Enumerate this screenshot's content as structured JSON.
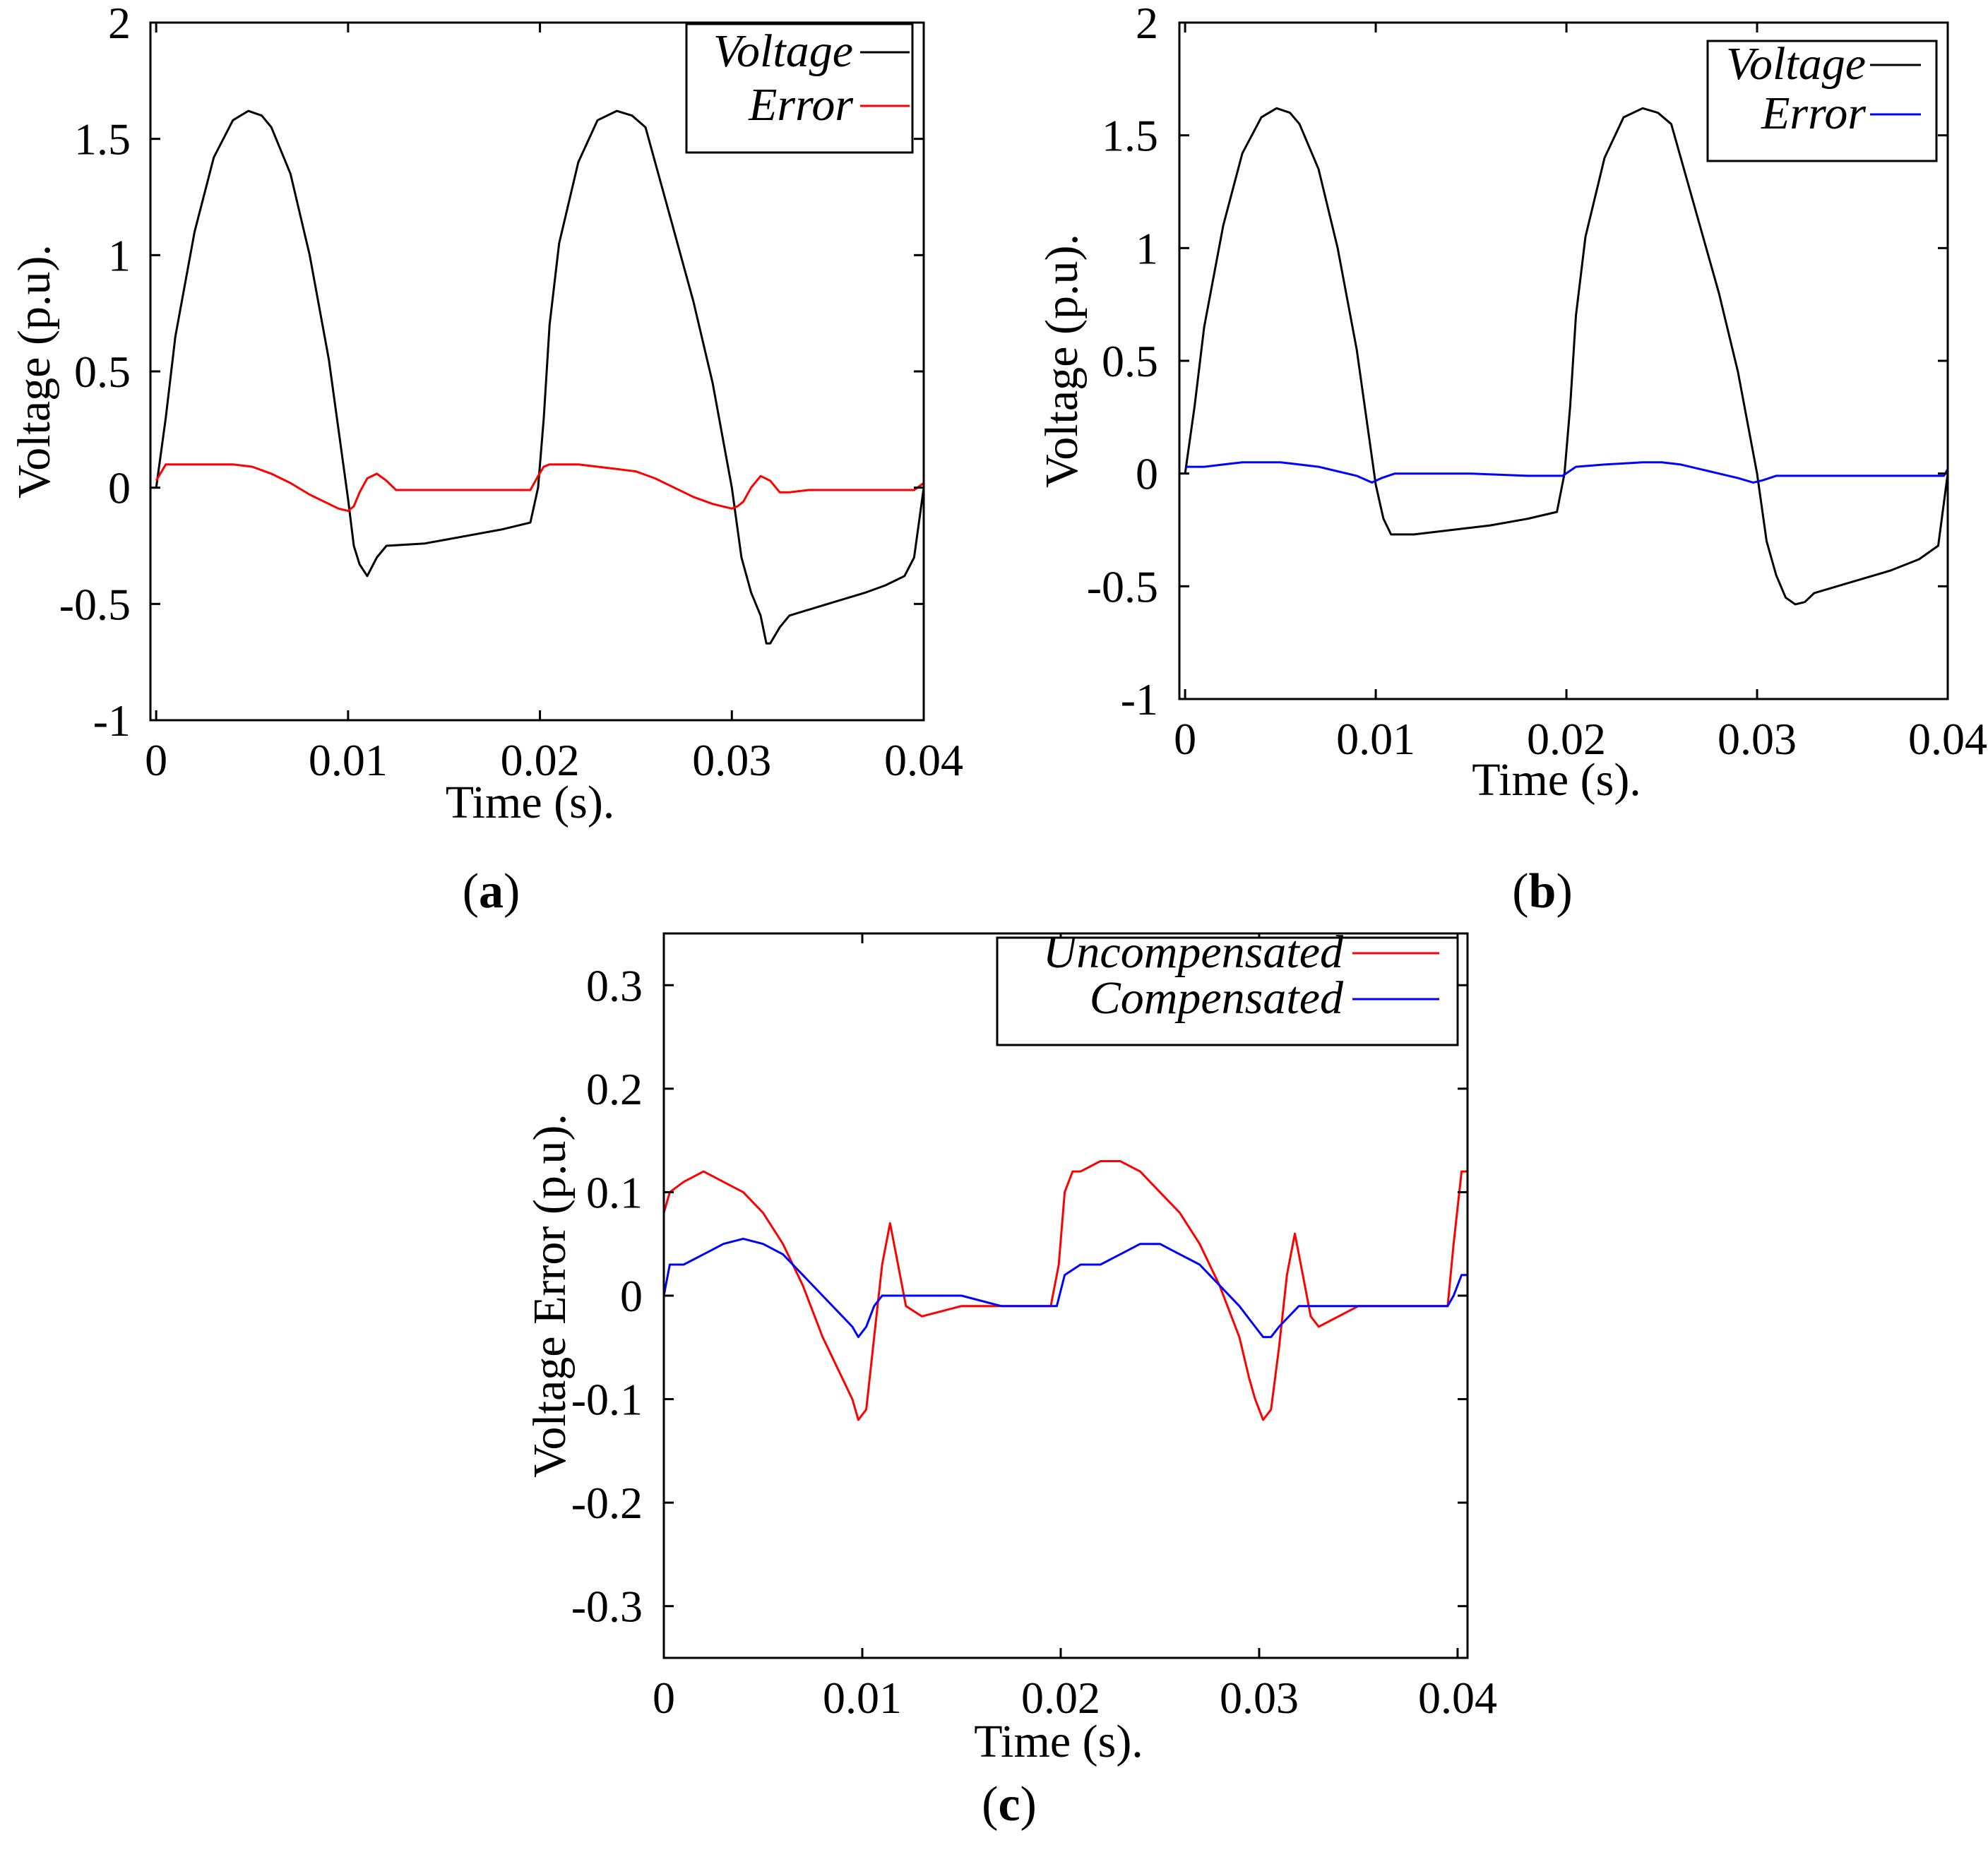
{
  "chart_data": [
    {
      "id": "a",
      "type": "line",
      "panel_label": "a",
      "xlabel": "Time (s).",
      "ylabel": "Voltage (p.u).",
      "xlim": [
        -0.0003,
        0.04
      ],
      "ylim": [
        -1,
        2
      ],
      "xticks": [
        0,
        0.01,
        0.02,
        0.03,
        0.04
      ],
      "yticks": [
        -1,
        -0.5,
        0,
        0.5,
        1,
        1.5,
        2
      ],
      "ytick_labels": [
        "-1",
        "-0.5",
        "0",
        "0.5",
        "1",
        "1.5",
        "2"
      ],
      "xtick_labels": [
        "0",
        "0.01",
        "0.02",
        "0.03",
        "0.04"
      ],
      "legend_position": "top-right",
      "series": [
        {
          "name": "Voltage",
          "color": "#000000",
          "x": [
            0,
            0.0005,
            0.001,
            0.002,
            0.003,
            0.004,
            0.0048,
            0.0055,
            0.006,
            0.007,
            0.008,
            0.009,
            0.0095,
            0.01,
            0.0103,
            0.0106,
            0.011,
            0.0115,
            0.012,
            0.014,
            0.016,
            0.018,
            0.0195,
            0.0199,
            0.0202,
            0.0205,
            0.021,
            0.022,
            0.023,
            0.024,
            0.0248,
            0.0255,
            0.026,
            0.027,
            0.028,
            0.029,
            0.03,
            0.0305,
            0.031,
            0.0315,
            0.0318,
            0.032,
            0.0325,
            0.033,
            0.035,
            0.037,
            0.038,
            0.039,
            0.0395,
            0.04
          ],
          "y": [
            0.0,
            0.3,
            0.65,
            1.1,
            1.42,
            1.58,
            1.62,
            1.6,
            1.55,
            1.35,
            1.0,
            0.55,
            0.25,
            -0.05,
            -0.25,
            -0.33,
            -0.38,
            -0.3,
            -0.25,
            -0.24,
            -0.21,
            -0.18,
            -0.15,
            0.0,
            0.3,
            0.7,
            1.05,
            1.4,
            1.58,
            1.62,
            1.6,
            1.55,
            1.4,
            1.1,
            0.8,
            0.45,
            0.0,
            -0.3,
            -0.45,
            -0.55,
            -0.67,
            -0.67,
            -0.6,
            -0.55,
            -0.5,
            -0.45,
            -0.42,
            -0.38,
            -0.3,
            0.0
          ]
        },
        {
          "name": "Error",
          "color": "#ff0000",
          "x": [
            0,
            0.0005,
            0.001,
            0.002,
            0.003,
            0.004,
            0.005,
            0.006,
            0.007,
            0.008,
            0.009,
            0.0095,
            0.01,
            0.0103,
            0.0106,
            0.011,
            0.0115,
            0.012,
            0.0125,
            0.013,
            0.015,
            0.017,
            0.0195,
            0.0199,
            0.0202,
            0.0205,
            0.021,
            0.022,
            0.023,
            0.024,
            0.025,
            0.026,
            0.027,
            0.028,
            0.029,
            0.03,
            0.0303,
            0.0306,
            0.031,
            0.0315,
            0.032,
            0.0325,
            0.033,
            0.034,
            0.036,
            0.038,
            0.0395,
            0.04
          ],
          "y": [
            0.03,
            0.1,
            0.1,
            0.1,
            0.1,
            0.1,
            0.09,
            0.06,
            0.02,
            -0.03,
            -0.07,
            -0.09,
            -0.1,
            -0.08,
            -0.02,
            0.04,
            0.06,
            0.03,
            -0.01,
            -0.01,
            -0.01,
            -0.01,
            -0.01,
            0.05,
            0.09,
            0.1,
            0.1,
            0.1,
            0.09,
            0.08,
            0.07,
            0.04,
            0.0,
            -0.04,
            -0.07,
            -0.09,
            -0.08,
            -0.06,
            0.0,
            0.05,
            0.03,
            -0.02,
            -0.02,
            -0.01,
            -0.01,
            -0.01,
            -0.01,
            0.02
          ]
        }
      ]
    },
    {
      "id": "b",
      "type": "line",
      "panel_label": "b",
      "xlabel": "Time (s).",
      "ylabel": "Voltage (p.u).",
      "xlim": [
        -0.0003,
        0.04
      ],
      "ylim": [
        -1,
        2
      ],
      "xticks": [
        0,
        0.01,
        0.02,
        0.03,
        0.04
      ],
      "yticks": [
        -1,
        -0.5,
        0,
        0.5,
        1,
        1.5,
        2
      ],
      "ytick_labels": [
        "-1",
        "-0.5",
        "0",
        "0.5",
        "1",
        "1.5",
        "2"
      ],
      "xtick_labels": [
        "0",
        "0.01",
        "0.02",
        "0.03",
        "0.04"
      ],
      "legend_position": "top-right",
      "series": [
        {
          "name": "Voltage",
          "color": "#000000",
          "x": [
            0,
            0.0005,
            0.001,
            0.002,
            0.003,
            0.004,
            0.0048,
            0.0055,
            0.006,
            0.007,
            0.008,
            0.009,
            0.0095,
            0.01,
            0.0104,
            0.0108,
            0.011,
            0.012,
            0.014,
            0.016,
            0.018,
            0.0195,
            0.0199,
            0.0202,
            0.0205,
            0.021,
            0.022,
            0.023,
            0.024,
            0.0248,
            0.0255,
            0.026,
            0.027,
            0.028,
            0.029,
            0.03,
            0.0305,
            0.031,
            0.0315,
            0.032,
            0.0325,
            0.033,
            0.035,
            0.037,
            0.0385,
            0.0395,
            0.04
          ],
          "y": [
            0.0,
            0.3,
            0.65,
            1.1,
            1.42,
            1.58,
            1.62,
            1.6,
            1.55,
            1.35,
            1.0,
            0.55,
            0.25,
            -0.05,
            -0.2,
            -0.27,
            -0.27,
            -0.27,
            -0.25,
            -0.23,
            -0.2,
            -0.17,
            0.0,
            0.3,
            0.7,
            1.05,
            1.4,
            1.58,
            1.62,
            1.6,
            1.55,
            1.4,
            1.1,
            0.8,
            0.45,
            0.0,
            -0.3,
            -0.45,
            -0.55,
            -0.58,
            -0.57,
            -0.53,
            -0.48,
            -0.43,
            -0.38,
            -0.32,
            0.0
          ]
        },
        {
          "name": "Error",
          "color": "#0000ff",
          "x": [
            0,
            0.001,
            0.002,
            0.003,
            0.004,
            0.005,
            0.006,
            0.007,
            0.008,
            0.009,
            0.0098,
            0.0103,
            0.011,
            0.012,
            0.015,
            0.018,
            0.0198,
            0.0205,
            0.022,
            0.024,
            0.025,
            0.026,
            0.027,
            0.028,
            0.029,
            0.0298,
            0.0303,
            0.031,
            0.032,
            0.035,
            0.038,
            0.0398,
            0.04
          ],
          "y": [
            0.03,
            0.03,
            0.04,
            0.05,
            0.05,
            0.05,
            0.04,
            0.03,
            0.01,
            -0.01,
            -0.04,
            -0.02,
            0.0,
            0.0,
            0.0,
            -0.01,
            -0.01,
            0.03,
            0.04,
            0.05,
            0.05,
            0.04,
            0.02,
            0.0,
            -0.02,
            -0.04,
            -0.03,
            -0.01,
            -0.01,
            -0.01,
            -0.01,
            -0.01,
            0.02
          ]
        }
      ]
    },
    {
      "id": "c",
      "type": "line",
      "panel_label": "c",
      "xlabel": "Time (s).",
      "ylabel": "Voltage Error (p.u).",
      "xlim": [
        0,
        0.0405
      ],
      "ylim": [
        -0.35,
        0.35
      ],
      "xticks": [
        0,
        0.01,
        0.02,
        0.03,
        0.04
      ],
      "yticks": [
        -0.3,
        -0.2,
        -0.1,
        0,
        0.1,
        0.2,
        0.3
      ],
      "ytick_labels": [
        "-0.3",
        "-0.2",
        "-0.1",
        "0",
        "0.1",
        "0.2",
        "0.3"
      ],
      "xtick_labels": [
        "0",
        "0.01",
        "0.02",
        "0.03",
        "0.04"
      ],
      "legend_position": "top-right",
      "series": [
        {
          "name": "Uncompensated",
          "color": "#ff0000",
          "x": [
            0,
            0.0003,
            0.001,
            0.002,
            0.003,
            0.004,
            0.005,
            0.006,
            0.007,
            0.008,
            0.009,
            0.0095,
            0.0098,
            0.0102,
            0.0106,
            0.011,
            0.0114,
            0.0118,
            0.0122,
            0.013,
            0.015,
            0.017,
            0.019,
            0.0195,
            0.0199,
            0.0202,
            0.0206,
            0.021,
            0.022,
            0.023,
            0.024,
            0.025,
            0.026,
            0.027,
            0.028,
            0.029,
            0.0295,
            0.0298,
            0.0302,
            0.0306,
            0.031,
            0.0314,
            0.0318,
            0.0322,
            0.0326,
            0.033,
            0.035,
            0.037,
            0.039,
            0.0395,
            0.0398,
            0.0402,
            0.0405
          ],
          "y": [
            0.08,
            0.1,
            0.11,
            0.12,
            0.11,
            0.1,
            0.08,
            0.05,
            0.01,
            -0.04,
            -0.08,
            -0.1,
            -0.12,
            -0.11,
            -0.04,
            0.03,
            0.07,
            0.03,
            -0.01,
            -0.02,
            -0.01,
            -0.01,
            -0.01,
            -0.01,
            0.03,
            0.1,
            0.12,
            0.12,
            0.13,
            0.13,
            0.12,
            0.1,
            0.08,
            0.05,
            0.01,
            -0.04,
            -0.08,
            -0.1,
            -0.12,
            -0.11,
            -0.05,
            0.02,
            0.06,
            0.02,
            -0.02,
            -0.03,
            -0.01,
            -0.01,
            -0.01,
            -0.01,
            0.05,
            0.12,
            0.12
          ]
        },
        {
          "name": "Compensated",
          "color": "#0000ff",
          "x": [
            0,
            0.0003,
            0.001,
            0.002,
            0.003,
            0.004,
            0.005,
            0.006,
            0.007,
            0.008,
            0.009,
            0.0095,
            0.0098,
            0.0102,
            0.0106,
            0.011,
            0.013,
            0.015,
            0.017,
            0.019,
            0.0198,
            0.0202,
            0.021,
            0.022,
            0.023,
            0.024,
            0.025,
            0.026,
            0.027,
            0.028,
            0.029,
            0.0298,
            0.0302,
            0.0306,
            0.031,
            0.032,
            0.034,
            0.036,
            0.038,
            0.0395,
            0.0398,
            0.0402,
            0.0405
          ],
          "y": [
            0.0,
            0.03,
            0.03,
            0.04,
            0.05,
            0.055,
            0.05,
            0.04,
            0.02,
            0.0,
            -0.02,
            -0.03,
            -0.04,
            -0.03,
            -0.01,
            0.0,
            0.0,
            0.0,
            -0.01,
            -0.01,
            -0.01,
            0.02,
            0.03,
            0.03,
            0.04,
            0.05,
            0.05,
            0.04,
            0.03,
            0.01,
            -0.01,
            -0.03,
            -0.04,
            -0.04,
            -0.03,
            -0.01,
            -0.01,
            -0.01,
            -0.01,
            -0.01,
            0.0,
            0.02,
            0.02
          ]
        }
      ]
    }
  ]
}
